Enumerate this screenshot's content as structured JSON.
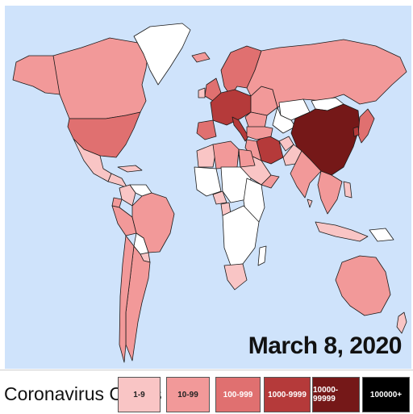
{
  "date": "March 8, 2020",
  "legend": {
    "title": "Coronavirus Cases",
    "bins": [
      {
        "label": "1-9",
        "color": "#f9c5c5",
        "text_color": "#222222"
      },
      {
        "label": "10-99",
        "color": "#f29999",
        "text_color": "#222222"
      },
      {
        "label": "100-999",
        "color": "#e07070",
        "text_color": "#ffffff"
      },
      {
        "label": "1000-9999",
        "color": "#b53a3a",
        "text_color": "#ffffff"
      },
      {
        "label": "10000-99999",
        "color": "#751818",
        "text_color": "#ffffff"
      },
      {
        "label": "100000+",
        "color": "#000000",
        "text_color": "#ffffff"
      }
    ]
  },
  "colors": {
    "ocean": "#cfe3fb",
    "no_cases": "#ffffff"
  },
  "regions": [
    {
      "name": "Canada",
      "bin": 1
    },
    {
      "name": "Alaska",
      "bin": 1
    },
    {
      "name": "Greenland",
      "bin": -1
    },
    {
      "name": "United States",
      "bin": 2
    },
    {
      "name": "Mexico",
      "bin": 0
    },
    {
      "name": "Central America",
      "bin": 0
    },
    {
      "name": "Caribbean",
      "bin": 0
    },
    {
      "name": "Colombia",
      "bin": 0
    },
    {
      "name": "Venezuela",
      "bin": -1
    },
    {
      "name": "Ecuador",
      "bin": 1
    },
    {
      "name": "Peru",
      "bin": 1
    },
    {
      "name": "Brazil",
      "bin": 1
    },
    {
      "name": "Bolivia",
      "bin": -1
    },
    {
      "name": "Paraguay",
      "bin": 0
    },
    {
      "name": "Argentina",
      "bin": 1
    },
    {
      "name": "Chile",
      "bin": 1
    },
    {
      "name": "Iceland",
      "bin": 1
    },
    {
      "name": "United Kingdom",
      "bin": 2
    },
    {
      "name": "Ireland",
      "bin": 0
    },
    {
      "name": "Scandinavia",
      "bin": 2
    },
    {
      "name": "Western Europe",
      "bin": 3
    },
    {
      "name": "Italy",
      "bin": 3
    },
    {
      "name": "Spain",
      "bin": 2
    },
    {
      "name": "Eastern Europe",
      "bin": 1
    },
    {
      "name": "Balkans",
      "bin": 1
    },
    {
      "name": "Russia",
      "bin": 1
    },
    {
      "name": "Kazakhstan",
      "bin": -1
    },
    {
      "name": "Mongolia",
      "bin": -1
    },
    {
      "name": "Central Asia",
      "bin": -1
    },
    {
      "name": "China",
      "bin": 4
    },
    {
      "name": "Japan",
      "bin": 2
    },
    {
      "name": "South Korea",
      "bin": 3
    },
    {
      "name": "Iran",
      "bin": 3
    },
    {
      "name": "Turkey",
      "bin": 1
    },
    {
      "name": "Middle East",
      "bin": 1
    },
    {
      "name": "Saudi Arabia",
      "bin": 0
    },
    {
      "name": "Arabian Peninsula",
      "bin": 1
    },
    {
      "name": "Afghanistan",
      "bin": 0
    },
    {
      "name": "Pakistan",
      "bin": 0
    },
    {
      "name": "India",
      "bin": 1
    },
    {
      "name": "Sri Lanka",
      "bin": 0
    },
    {
      "name": "Southeast Asia",
      "bin": 1
    },
    {
      "name": "Indonesia",
      "bin": 0
    },
    {
      "name": "Philippines",
      "bin": 0
    },
    {
      "name": "New Guinea",
      "bin": -1
    },
    {
      "name": "Australia",
      "bin": 1
    },
    {
      "name": "New Zealand",
      "bin": 0
    },
    {
      "name": "North Africa",
      "bin": 0
    },
    {
      "name": "Algeria",
      "bin": 1
    },
    {
      "name": "Egypt",
      "bin": 1
    },
    {
      "name": "West Africa",
      "bin": -1
    },
    {
      "name": "Nigeria",
      "bin": 0
    },
    {
      "name": "Cameroon",
      "bin": 0
    },
    {
      "name": "Central Africa",
      "bin": -1
    },
    {
      "name": "East Africa",
      "bin": -1
    },
    {
      "name": "Southern Africa",
      "bin": -1
    },
    {
      "name": "South Africa",
      "bin": 0
    },
    {
      "name": "Madagascar",
      "bin": -1
    }
  ]
}
